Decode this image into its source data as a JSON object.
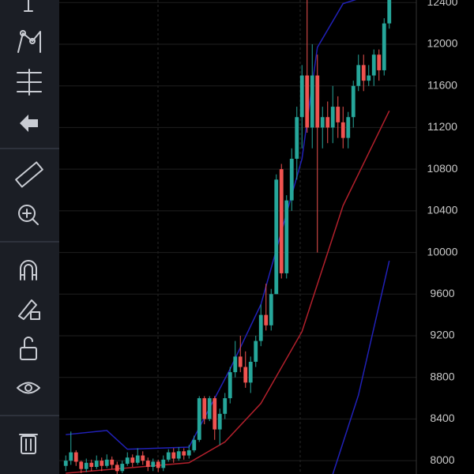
{
  "chart_data": {
    "type": "candlestick",
    "x": [
      0,
      1,
      2,
      3,
      4,
      5,
      6,
      7,
      8,
      9,
      10,
      11,
      12,
      13,
      14,
      15,
      16,
      17,
      18,
      19,
      20,
      21,
      22,
      23,
      24,
      25,
      26,
      27,
      28,
      29,
      30,
      31,
      32,
      33,
      34,
      35,
      36,
      37,
      38,
      39,
      40,
      41,
      42,
      43,
      44,
      45,
      46,
      47,
      48,
      49,
      50,
      51,
      52,
      53,
      54,
      55,
      56,
      57,
      58,
      59,
      60,
      61,
      62,
      63
    ],
    "open": [
      7950,
      8000,
      8080,
      7990,
      7920,
      7980,
      7940,
      8000,
      7950,
      8010,
      7960,
      7900,
      7970,
      8030,
      7980,
      8050,
      8000,
      7940,
      7990,
      7930,
      8010,
      8080,
      8020,
      8090,
      8050,
      8100,
      8200,
      8600,
      8400,
      8600,
      8300,
      8450,
      8600,
      8850,
      9000,
      8900,
      8750,
      8950,
      9150,
      9400,
      9300,
      9600,
      10800,
      9800,
      10500,
      10900,
      11300,
      11700,
      11200,
      11700,
      11200,
      11300,
      11200,
      11400,
      11250,
      11100,
      11300,
      11600,
      11800,
      11650,
      11700,
      11900,
      11750,
      12200
    ],
    "high": [
      8050,
      8280,
      8100,
      8000,
      8020,
      8010,
      8050,
      8030,
      8060,
      8040,
      7990,
      8000,
      8080,
      8060,
      8120,
      8090,
      8030,
      8020,
      8010,
      8050,
      8110,
      8120,
      8130,
      8120,
      8150,
      8240,
      8620,
      8620,
      8620,
      8620,
      8500,
      8650,
      8900,
      9150,
      9200,
      9050,
      9000,
      9200,
      9500,
      9700,
      9650,
      10750,
      10850,
      10550,
      11000,
      11400,
      11800,
      12450,
      12000,
      11900,
      11400,
      11450,
      11600,
      11500,
      11400,
      11350,
      11650,
      11900,
      11900,
      11800,
      11950,
      11950,
      12250,
      12600
    ],
    "low": [
      7900,
      7960,
      7950,
      7880,
      7890,
      7900,
      7920,
      7900,
      7930,
      7920,
      7870,
      7880,
      7950,
      7940,
      7960,
      7960,
      7900,
      7900,
      7890,
      7900,
      7990,
      7980,
      8000,
      8010,
      8020,
      8080,
      8180,
      8350,
      8380,
      8200,
      8150,
      8400,
      8550,
      8800,
      8850,
      8700,
      8650,
      8900,
      9100,
      9250,
      9250,
      9600,
      9750,
      9750,
      10400,
      10700,
      11000,
      11150,
      11000,
      10000,
      11000,
      11050,
      11050,
      11100,
      11000,
      11000,
      11200,
      11550,
      11550,
      11600,
      11600,
      11650,
      11700,
      12150
    ],
    "close": [
      8000,
      8080,
      7990,
      7920,
      7980,
      7940,
      8000,
      7950,
      8010,
      7960,
      7900,
      7970,
      8030,
      7980,
      8050,
      8000,
      7940,
      7990,
      7930,
      8010,
      8080,
      8020,
      8090,
      8050,
      8100,
      8200,
      8600,
      8400,
      8600,
      8300,
      8450,
      8600,
      8850,
      9000,
      8900,
      8750,
      8950,
      9150,
      9400,
      9300,
      9600,
      10700,
      9800,
      10500,
      10900,
      11300,
      11700,
      11200,
      11700,
      11200,
      11300,
      11200,
      11400,
      11250,
      11100,
      11300,
      11600,
      11800,
      11650,
      11700,
      11900,
      11750,
      12200,
      12500
    ],
    "up_color": "#26a69a",
    "down_color": "#ef5350",
    "lines": [
      {
        "color": "#2121b8",
        "x": [
          0,
          8,
          12,
          24,
          32,
          38,
          46,
          49,
          54,
          61
        ],
        "values": [
          8250,
          8290,
          8110,
          8130,
          8880,
          9500,
          10900,
          11970,
          12390,
          12500
        ]
      },
      {
        "color": "#b3202c",
        "x": [
          0,
          24,
          31,
          38,
          46,
          54,
          63
        ],
        "values": [
          7880,
          7980,
          8180,
          8550,
          9240,
          10450,
          11360
        ]
      },
      {
        "color": "#2121b8",
        "x": [
          52,
          57,
          63
        ],
        "values": [
          7870,
          8630,
          9920
        ]
      }
    ],
    "xlim": [
      -0.5,
      63.5
    ],
    "ylim": [
      7872,
      12425
    ],
    "yticks": [
      8000,
      8400,
      8800,
      9200,
      9600,
      10000,
      10400,
      10800,
      11200,
      11600,
      12000,
      12400
    ],
    "grid": true
  }
}
